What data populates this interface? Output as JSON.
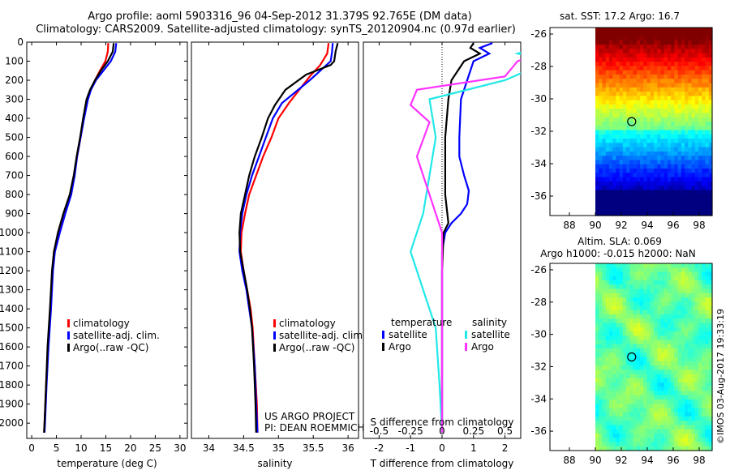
{
  "title": {
    "line1": "Argo profile: aoml 5903316_96 04-Sep-2012 31.379S 92.765E (DM data)",
    "line2": "Climatology: CARS2009. Satellite-adjusted climatology: synTS_20120904.nc (0.97d earlier)"
  },
  "project_note": {
    "line1": "US ARGO PROJECT",
    "line2": "PI: DEAN ROEMMICH"
  },
  "side_stamp": "©IMOS 03-Aug-2017 19:33:19",
  "colors": {
    "climatology": "#ff0000",
    "satellite": "#0000ff",
    "argo": "#000000",
    "argo_salinity_diff": "#ff33ff",
    "satellite_salinity_diff": "#22e8e8"
  },
  "chart_data": [
    {
      "type": "line",
      "xlabel": "temperature (deg C)",
      "ylabel": "",
      "xlim": [
        -1,
        31.5
      ],
      "ylim": [
        2080,
        0
      ],
      "y_reversed": true,
      "xticks": [
        0,
        5,
        10,
        15,
        20,
        25,
        30
      ],
      "yticks": [
        0,
        100,
        200,
        300,
        400,
        500,
        600,
        700,
        800,
        900,
        1000,
        1100,
        1200,
        1300,
        1400,
        1500,
        1600,
        1700,
        1800,
        1900,
        2000
      ],
      "legend": [
        "climatology",
        "satellite-adj. clim.",
        "Argo(..raw -QC)"
      ],
      "legend_position": "bottom-center",
      "series": [
        {
          "name": "climatology",
          "color": "#ff0000",
          "points": [
            [
              15.5,
              5
            ],
            [
              15.4,
              50
            ],
            [
              14.9,
              100
            ],
            [
              13.8,
              150
            ],
            [
              12.8,
              200
            ],
            [
              11.9,
              250
            ],
            [
              11.2,
              300
            ],
            [
              10.5,
              400
            ],
            [
              9.9,
              500
            ],
            [
              9.2,
              600
            ],
            [
              8.6,
              700
            ],
            [
              7.9,
              800
            ],
            [
              6.6,
              900
            ],
            [
              5.4,
              1000
            ],
            [
              4.5,
              1100
            ],
            [
              4.2,
              1200
            ],
            [
              3.8,
              1400
            ],
            [
              3.3,
              1600
            ],
            [
              2.9,
              1800
            ],
            [
              2.6,
              2000
            ],
            [
              2.5,
              2050
            ]
          ]
        },
        {
          "name": "satellite-adj. clim.",
          "color": "#0000ff",
          "points": [
            [
              17.1,
              5
            ],
            [
              16.9,
              50
            ],
            [
              16.0,
              100
            ],
            [
              14.5,
              150
            ],
            [
              13.0,
              200
            ],
            [
              12.0,
              250
            ],
            [
              11.4,
              300
            ],
            [
              10.6,
              400
            ],
            [
              9.9,
              500
            ],
            [
              9.2,
              600
            ],
            [
              8.7,
              700
            ],
            [
              8.0,
              800
            ],
            [
              6.8,
              900
            ],
            [
              5.7,
              1000
            ],
            [
              4.7,
              1100
            ],
            [
              4.3,
              1200
            ],
            [
              3.9,
              1400
            ],
            [
              3.4,
              1600
            ],
            [
              3.0,
              1800
            ],
            [
              2.7,
              2000
            ],
            [
              2.6,
              2050
            ]
          ]
        },
        {
          "name": "Argo(..raw -QC)",
          "color": "#000000",
          "points": [
            [
              16.6,
              5
            ],
            [
              16.4,
              50
            ],
            [
              15.4,
              100
            ],
            [
              14.0,
              150
            ],
            [
              12.8,
              200
            ],
            [
              11.8,
              250
            ],
            [
              11.1,
              300
            ],
            [
              10.4,
              400
            ],
            [
              9.8,
              500
            ],
            [
              9.1,
              600
            ],
            [
              8.5,
              700
            ],
            [
              7.7,
              800
            ],
            [
              6.4,
              900
            ],
            [
              5.3,
              1000
            ],
            [
              4.5,
              1100
            ],
            [
              4.1,
              1200
            ],
            [
              3.7,
              1400
            ],
            [
              3.2,
              1600
            ],
            [
              2.9,
              1800
            ],
            [
              2.6,
              2000
            ],
            [
              2.5,
              2050
            ]
          ]
        }
      ]
    },
    {
      "type": "line",
      "xlabel": "salinity",
      "ylabel": "",
      "xlim": [
        33.75,
        36.15
      ],
      "ylim": [
        2080,
        0
      ],
      "y_reversed": true,
      "xticks": [
        34,
        34.5,
        35,
        35.5,
        36
      ],
      "legend": [
        "climatology",
        "satellite-adj. clim.",
        "Argo(..raw -QC)"
      ],
      "legend_position": "bottom-right",
      "series": [
        {
          "name": "climatology",
          "color": "#ff0000",
          "points": [
            [
              35.72,
              5
            ],
            [
              35.7,
              60
            ],
            [
              35.6,
              120
            ],
            [
              35.45,
              180
            ],
            [
              35.3,
              250
            ],
            [
              35.15,
              320
            ],
            [
              35.0,
              400
            ],
            [
              34.9,
              500
            ],
            [
              34.78,
              600
            ],
            [
              34.68,
              700
            ],
            [
              34.58,
              800
            ],
            [
              34.52,
              900
            ],
            [
              34.47,
              1000
            ],
            [
              34.46,
              1100
            ],
            [
              34.5,
              1200
            ],
            [
              34.55,
              1300
            ],
            [
              34.6,
              1400
            ],
            [
              34.63,
              1500
            ],
            [
              34.66,
              1700
            ],
            [
              34.69,
              1900
            ],
            [
              34.7,
              2050
            ]
          ]
        },
        {
          "name": "satellite-adj. clim.",
          "color": "#0000ff",
          "points": [
            [
              35.78,
              5
            ],
            [
              35.77,
              50
            ],
            [
              35.75,
              100
            ],
            [
              35.6,
              150
            ],
            [
              35.45,
              200
            ],
            [
              35.25,
              260
            ],
            [
              35.05,
              320
            ],
            [
              34.92,
              400
            ],
            [
              34.82,
              500
            ],
            [
              34.72,
              600
            ],
            [
              34.62,
              700
            ],
            [
              34.54,
              800
            ],
            [
              34.48,
              900
            ],
            [
              34.45,
              1000
            ],
            [
              34.44,
              1100
            ],
            [
              34.48,
              1200
            ],
            [
              34.54,
              1300
            ],
            [
              34.58,
              1400
            ],
            [
              34.62,
              1500
            ],
            [
              34.66,
              1700
            ],
            [
              34.68,
              1900
            ],
            [
              34.7,
              2050
            ]
          ]
        },
        {
          "name": "Argo(..raw -QC)",
          "color": "#000000",
          "points": [
            [
              35.85,
              5
            ],
            [
              35.82,
              50
            ],
            [
              35.8,
              100
            ],
            [
              35.75,
              120
            ],
            [
              35.4,
              170
            ],
            [
              35.1,
              250
            ],
            [
              34.95,
              330
            ],
            [
              34.85,
              400
            ],
            [
              34.76,
              500
            ],
            [
              34.66,
              600
            ],
            [
              34.58,
              700
            ],
            [
              34.52,
              800
            ],
            [
              34.46,
              900
            ],
            [
              34.44,
              1000
            ],
            [
              34.45,
              1100
            ],
            [
              34.5,
              1200
            ],
            [
              34.55,
              1300
            ],
            [
              34.59,
              1400
            ],
            [
              34.62,
              1500
            ],
            [
              34.65,
              1700
            ],
            [
              34.67,
              1900
            ],
            [
              34.68,
              2050
            ]
          ]
        }
      ]
    },
    {
      "type": "line",
      "xlabel": "T difference from climatology",
      "secondary_xlabel": "S difference from climatology",
      "ylabel": "",
      "xlim": [
        -2.5,
        2.5
      ],
      "ylim": [
        2080,
        0
      ],
      "y_reversed": true,
      "xticks": [
        -2,
        -1,
        0,
        1,
        2
      ],
      "secondary_xticks": [
        -0.5,
        -0.25,
        0,
        0.25,
        0.5
      ],
      "secondary_xtick_labels": [
        "-0.5",
        "-0.25",
        "0",
        "0.25",
        "0.5"
      ],
      "legend_titles": [
        "temperature",
        "salinity"
      ],
      "legend": [
        "satellite",
        "Argo",
        "satellite",
        "Argo"
      ],
      "legend_position": "bottom",
      "series": [
        {
          "name": "satellite",
          "group": "temperature",
          "color": "#0000ff",
          "points": [
            [
              1.6,
              5
            ],
            [
              1.2,
              30
            ],
            [
              1.5,
              60
            ],
            [
              1.0,
              100
            ],
            [
              0.8,
              200
            ],
            [
              0.6,
              300
            ],
            [
              0.55,
              500
            ],
            [
              0.55,
              600
            ],
            [
              0.7,
              700
            ],
            [
              0.85,
              780
            ],
            [
              0.8,
              850
            ],
            [
              0.6,
              900
            ],
            [
              0.3,
              950
            ],
            [
              0.1,
              1000
            ],
            [
              0.0,
              1100
            ],
            [
              0.0,
              1500
            ],
            [
              0.0,
              2050
            ]
          ]
        },
        {
          "name": "Argo",
          "group": "temperature",
          "color": "#000000",
          "points": [
            [
              1.0,
              5
            ],
            [
              0.9,
              30
            ],
            [
              1.2,
              60
            ],
            [
              0.7,
              100
            ],
            [
              0.3,
              200
            ],
            [
              0.2,
              300
            ],
            [
              0.1,
              500
            ],
            [
              0.1,
              800
            ],
            [
              0.2,
              950
            ],
            [
              0.05,
              1000
            ],
            [
              0.0,
              1200
            ],
            [
              0.0,
              2050
            ]
          ]
        },
        {
          "name": "satellite",
          "group": "salinity",
          "color": "#22e8e8",
          "points": [
            [
              0.85,
              5
            ],
            [
              0.6,
              60
            ],
            [
              0.85,
              100
            ],
            [
              0.5,
              200
            ],
            [
              -0.1,
              300
            ],
            [
              -0.05,
              500
            ],
            [
              -0.1,
              700
            ],
            [
              -0.15,
              900
            ],
            [
              -0.25,
              1100
            ],
            [
              -0.15,
              1300
            ],
            [
              -0.05,
              1500
            ],
            [
              -0.02,
              1800
            ],
            [
              0.0,
              2050
            ]
          ]
        },
        {
          "name": "Argo",
          "group": "salinity",
          "color": "#ff33ff",
          "points": [
            [
              1.0,
              5
            ],
            [
              0.8,
              60
            ],
            [
              0.6,
              100
            ],
            [
              0.5,
              180
            ],
            [
              -0.2,
              250
            ],
            [
              -0.25,
              330
            ],
            [
              -0.1,
              420
            ],
            [
              -0.2,
              600
            ],
            [
              -0.1,
              800
            ],
            [
              0.0,
              1000
            ],
            [
              0.0,
              1500
            ],
            [
              0.0,
              2050
            ]
          ]
        }
      ]
    },
    {
      "type": "heatmap",
      "title": "sat. SST: 17.2 Argo: 16.7",
      "xlim": [
        86.5,
        99
      ],
      "ylim": [
        -37.2,
        -25.6
      ],
      "xticks": [
        88,
        90,
        92,
        94,
        96,
        98
      ],
      "yticks": [
        -26,
        -28,
        -30,
        -32,
        -34,
        -36
      ],
      "data_x_range": [
        90,
        99
      ],
      "marker": {
        "x": 92.8,
        "y": -31.4
      },
      "colormap": "jet"
    },
    {
      "type": "heatmap",
      "title": "Altim. SLA: 0.069",
      "subtitle": "Argo h1000: -0.015 h2000: NaN",
      "xlim": [
        86.5,
        99
      ],
      "ylim": [
        -37.2,
        -25.6
      ],
      "xticks": [
        88,
        90,
        92,
        94,
        96,
        98
      ],
      "yticks": [
        -26,
        -28,
        -30,
        -32,
        -34,
        -36
      ],
      "data_x_range": [
        90,
        99
      ],
      "marker": {
        "x": 92.8,
        "y": -31.4
      },
      "colormap": "jet"
    }
  ]
}
